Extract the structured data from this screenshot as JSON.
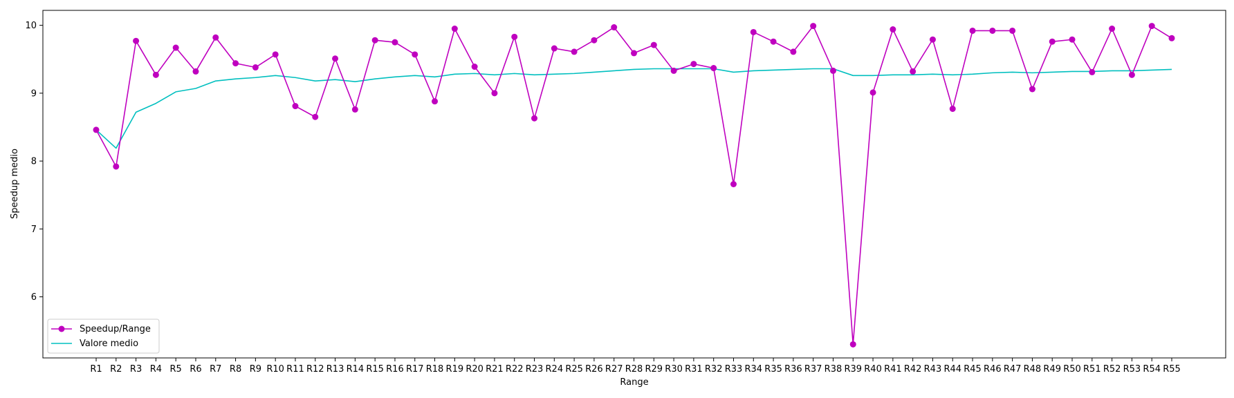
{
  "chart_data": {
    "type": "line",
    "xlabel": "Range",
    "ylabel": "Speedup medio",
    "ylim": [
      5.1,
      10.22
    ],
    "yticks": [
      6,
      7,
      8,
      9,
      10
    ],
    "grid": false,
    "legend_position": "bottom-left",
    "categories": [
      "R1",
      "R2",
      "R3",
      "R4",
      "R5",
      "R6",
      "R7",
      "R8",
      "R9",
      "R10",
      "R11",
      "R12",
      "R13",
      "R14",
      "R15",
      "R16",
      "R17",
      "R18",
      "R19",
      "R20",
      "R21",
      "R22",
      "R23",
      "R24",
      "R25",
      "R26",
      "R27",
      "R28",
      "R29",
      "R30",
      "R31",
      "R32",
      "R33",
      "R34",
      "R35",
      "R36",
      "R37",
      "R38",
      "R39",
      "R40",
      "R41",
      "R42",
      "R43",
      "R44",
      "R45",
      "R46",
      "R47",
      "R48",
      "R49",
      "R50",
      "R51",
      "R52",
      "R53",
      "R54",
      "R55"
    ],
    "series": [
      {
        "name": "Speedup/Range",
        "color": "#bf00bf",
        "marker": "circle",
        "values": [
          8.46,
          7.92,
          9.77,
          9.27,
          9.67,
          9.32,
          9.82,
          9.44,
          9.38,
          9.57,
          8.81,
          8.65,
          9.51,
          8.76,
          9.78,
          9.75,
          9.57,
          8.88,
          9.95,
          9.39,
          9.0,
          9.83,
          8.63,
          9.66,
          9.61,
          9.78,
          9.97,
          9.59,
          9.71,
          9.33,
          9.43,
          9.37,
          7.66,
          9.9,
          9.76,
          9.61,
          9.99,
          9.33,
          5.3,
          9.01,
          9.94,
          9.32,
          9.79,
          8.77,
          9.92,
          9.92,
          9.92,
          9.06,
          9.76,
          9.79,
          9.31,
          9.95,
          9.27,
          9.99,
          9.81
        ]
      },
      {
        "name": "Valore medio",
        "color": "#00bfbf",
        "marker": "none",
        "values": [
          8.46,
          8.19,
          8.72,
          8.85,
          9.02,
          9.07,
          9.18,
          9.21,
          9.23,
          9.26,
          9.23,
          9.18,
          9.2,
          9.17,
          9.21,
          9.24,
          9.26,
          9.24,
          9.28,
          9.29,
          9.27,
          9.29,
          9.27,
          9.28,
          9.29,
          9.31,
          9.33,
          9.35,
          9.36,
          9.36,
          9.36,
          9.36,
          9.31,
          9.33,
          9.34,
          9.35,
          9.36,
          9.36,
          9.26,
          9.26,
          9.27,
          9.27,
          9.28,
          9.27,
          9.28,
          9.3,
          9.31,
          9.3,
          9.31,
          9.32,
          9.32,
          9.33,
          9.33,
          9.34,
          9.35
        ]
      }
    ]
  }
}
